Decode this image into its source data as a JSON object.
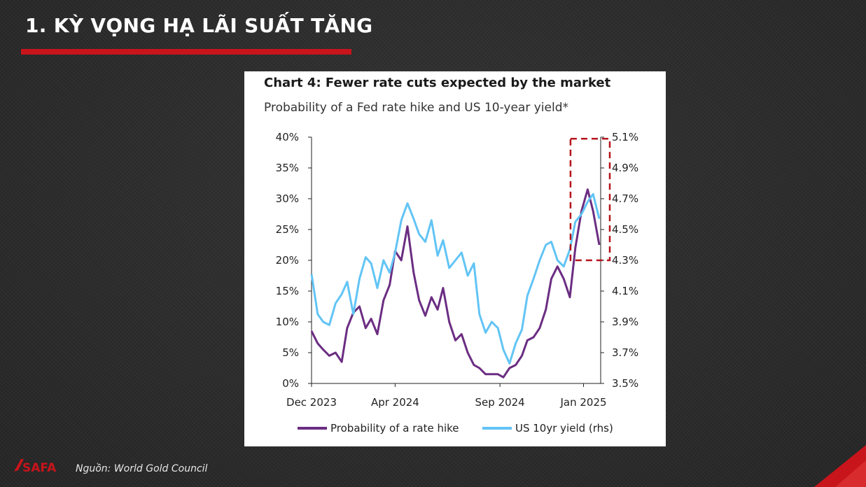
{
  "slide": {
    "title": "1. KỲ VỌNG HẠ LÃI SUẤT TĂNG",
    "source": "Nguồn: World Gold Council",
    "logo_text": "SAFA",
    "accent_color": "#c8141b"
  },
  "chart_data": {
    "type": "line",
    "title": "Chart 4: Fewer rate cuts expected by the market",
    "subtitle": "Probability of a Fed rate hike and US 10-year yield*",
    "x_tick_labels": [
      "Dec 2023",
      "Apr 2024",
      "Sep 2024",
      "Jan 2025"
    ],
    "left_axis": {
      "ylim": [
        0,
        40
      ],
      "ticks": [
        "0%",
        "5%",
        "10%",
        "15%",
        "20%",
        "25%",
        "30%",
        "35%",
        "40%"
      ]
    },
    "right_axis": {
      "ylim": [
        3.5,
        5.1
      ],
      "ticks": [
        "3.5%",
        "3.7%",
        "3.9%",
        "4.1%",
        "4.3%",
        "4.5%",
        "4.7%",
        "4.9%",
        "5.1%"
      ]
    },
    "series": [
      {
        "name": "Probability of a rate hike",
        "axis": "left",
        "color": "#6b2d82",
        "x": [
          "2023-12-01",
          "2023-12-10",
          "2023-12-18",
          "2023-12-27",
          "2024-01-05",
          "2024-01-14",
          "2024-01-22",
          "2024-01-31",
          "2024-02-09",
          "2024-02-18",
          "2024-02-26",
          "2024-03-06",
          "2024-03-15",
          "2024-03-24",
          "2024-04-01",
          "2024-04-10",
          "2024-04-19",
          "2024-04-28",
          "2024-05-06",
          "2024-05-15",
          "2024-05-24",
          "2024-06-02",
          "2024-06-10",
          "2024-06-19",
          "2024-06-28",
          "2024-07-07",
          "2024-07-16",
          "2024-07-25",
          "2024-08-02",
          "2024-08-11",
          "2024-08-20",
          "2024-08-29",
          "2024-09-06",
          "2024-09-15",
          "2024-09-24",
          "2024-10-03",
          "2024-10-11",
          "2024-10-20",
          "2024-10-29",
          "2024-11-07",
          "2024-11-15",
          "2024-11-24",
          "2024-12-03",
          "2024-12-12",
          "2024-12-20",
          "2024-12-29",
          "2025-01-07",
          "2025-01-15",
          "2025-01-24"
        ],
        "values": [
          8.5,
          6.5,
          5.5,
          4.5,
          5,
          3.5,
          9,
          11.5,
          12.5,
          9,
          10.5,
          8,
          13.5,
          16,
          21.5,
          20,
          25.5,
          18,
          13.5,
          11,
          14,
          12,
          15.5,
          10,
          7,
          8,
          5,
          3,
          2.5,
          1.5,
          1.5,
          1.5,
          1,
          2.5,
          3,
          4.5,
          7,
          7.5,
          9,
          12,
          17,
          19,
          17,
          14,
          22,
          28,
          31.5,
          28,
          22.5
        ]
      },
      {
        "name": "US 10yr yield (rhs)",
        "axis": "right",
        "color": "#62c4f5",
        "x": [
          "2023-12-01",
          "2023-12-10",
          "2023-12-18",
          "2023-12-27",
          "2024-01-05",
          "2024-01-14",
          "2024-01-22",
          "2024-01-31",
          "2024-02-09",
          "2024-02-18",
          "2024-02-26",
          "2024-03-06",
          "2024-03-15",
          "2024-03-24",
          "2024-04-01",
          "2024-04-10",
          "2024-04-19",
          "2024-04-28",
          "2024-05-06",
          "2024-05-15",
          "2024-05-24",
          "2024-06-02",
          "2024-06-10",
          "2024-06-19",
          "2024-06-28",
          "2024-07-07",
          "2024-07-16",
          "2024-07-25",
          "2024-08-02",
          "2024-08-11",
          "2024-08-20",
          "2024-08-29",
          "2024-09-06",
          "2024-09-15",
          "2024-09-24",
          "2024-10-03",
          "2024-10-11",
          "2024-10-20",
          "2024-10-29",
          "2024-11-07",
          "2024-11-15",
          "2024-11-24",
          "2024-12-03",
          "2024-12-12",
          "2024-12-20",
          "2024-12-29",
          "2025-01-07",
          "2025-01-15",
          "2025-01-24"
        ],
        "values": [
          4.21,
          3.95,
          3.9,
          3.88,
          4.02,
          4.08,
          4.16,
          3.95,
          4.18,
          4.32,
          4.28,
          4.12,
          4.3,
          4.22,
          4.35,
          4.56,
          4.67,
          4.57,
          4.47,
          4.42,
          4.56,
          4.33,
          4.43,
          4.25,
          4.3,
          4.35,
          4.2,
          4.28,
          3.95,
          3.83,
          3.9,
          3.86,
          3.72,
          3.63,
          3.76,
          3.85,
          4.07,
          4.18,
          4.3,
          4.4,
          4.42,
          4.3,
          4.26,
          4.37,
          4.55,
          4.6,
          4.68,
          4.73,
          4.57
        ]
      }
    ],
    "annotation": "dashed red box highlighting Dec 2024 - Jan 2025",
    "legend_placement": "bottom",
    "grid": false
  }
}
